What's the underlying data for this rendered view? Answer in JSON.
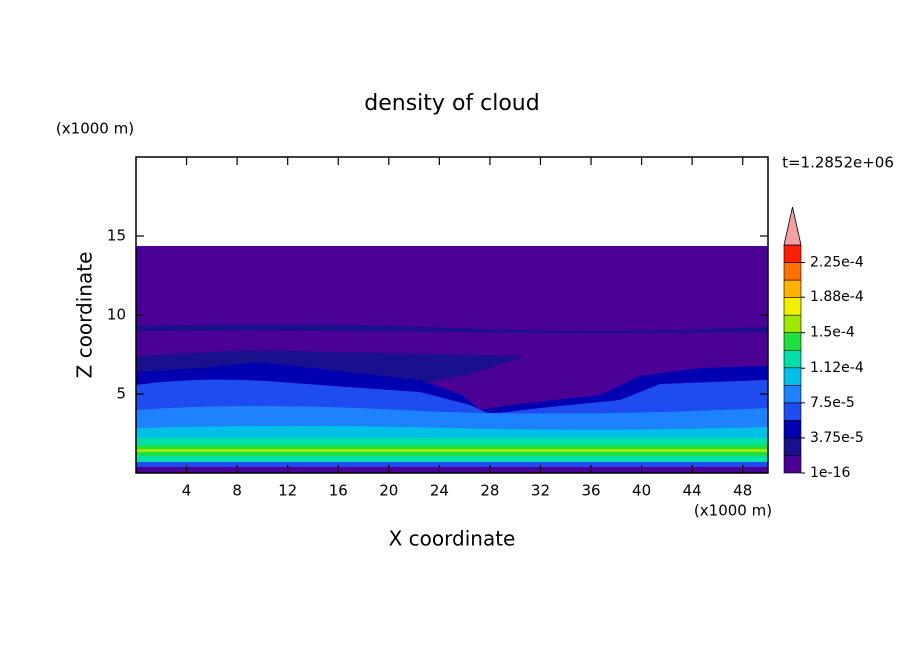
{
  "chart_data": {
    "type": "contour",
    "title": "density of cloud",
    "x_label": "X coordinate",
    "y_label": "Z coordinate",
    "x_unit": "(x1000 m)",
    "y_unit": "(x1000 m)",
    "annotation": "t=1.2852e+06",
    "xlim": [
      0,
      50
    ],
    "xticks": [
      4,
      8,
      12,
      16,
      20,
      24,
      28,
      32,
      36,
      40,
      44,
      48
    ],
    "ylim": [
      0,
      20
    ],
    "yticks": [
      5,
      10,
      15
    ],
    "colorbar": {
      "clim": [
        0,
        0.00024375
      ],
      "levels": [
        {
          "value": 1e-16,
          "label": "1e-16"
        },
        {
          "value": 3.75e-05,
          "label": "3.75e-5"
        },
        {
          "value": 7.5e-05,
          "label": "7.5e-5"
        },
        {
          "value": 0.000112,
          "label": "1.12e-4"
        },
        {
          "value": 0.00015,
          "label": "1.5e-4"
        },
        {
          "value": 0.000188,
          "label": "1.88e-4"
        },
        {
          "value": 0.000225,
          "label": "2.25e-4"
        }
      ],
      "colors": [
        "#4b0096",
        "#1a0f8c",
        "#0000b0",
        "#1e4cf0",
        "#1e82ff",
        "#00c0e8",
        "#00e0a8",
        "#20e040",
        "#a0e800",
        "#f0f000",
        "#ffb000",
        "#ff7000",
        "#ff2000"
      ],
      "extend_color": "#f4a0a0"
    }
  }
}
